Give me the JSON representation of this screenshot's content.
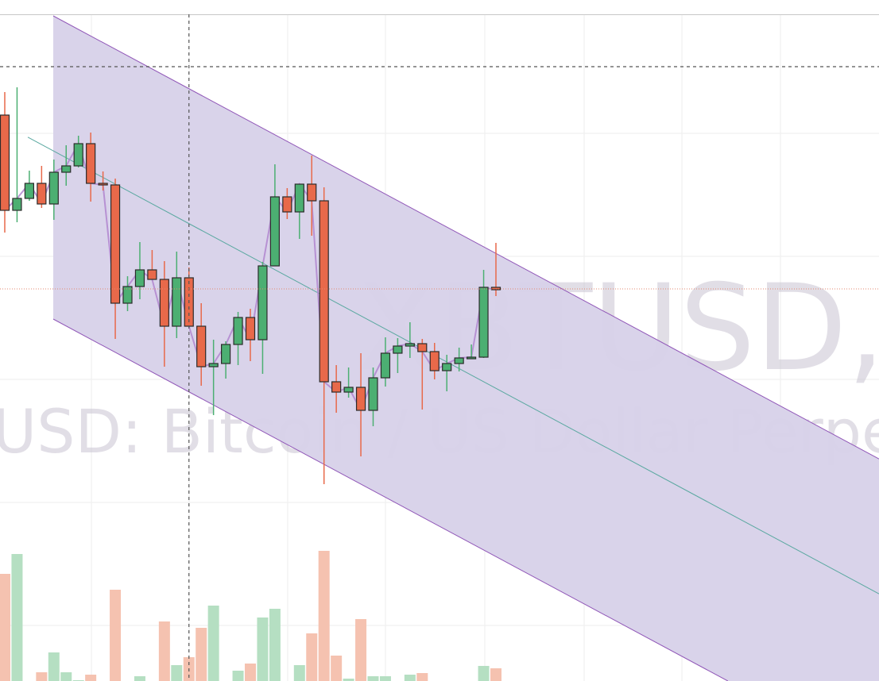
{
  "chart_data": {
    "type": "candlestick",
    "symbol_watermark": "XBTUSD,",
    "description_watermark": "XBTUSD: Bitcoin / US Dollar Perpetual",
    "price_units": "relative (no price axis visible)",
    "candles": [
      {
        "o": 45.5,
        "h": 48.4,
        "l": 30.7,
        "c": 33.5
      },
      {
        "o": 33.5,
        "h": 49.0,
        "l": 32.0,
        "c": 35.0
      },
      {
        "o": 35.0,
        "h": 38.5,
        "l": 34.7,
        "c": 36.9
      },
      {
        "o": 36.9,
        "h": 39.1,
        "l": 33.8,
        "c": 34.3
      },
      {
        "o": 34.3,
        "h": 39.9,
        "l": 32.3,
        "c": 38.3
      },
      {
        "o": 38.3,
        "h": 41.7,
        "l": 36.6,
        "c": 39.1
      },
      {
        "o": 39.1,
        "h": 42.9,
        "l": 38.9,
        "c": 41.9
      },
      {
        "o": 41.9,
        "h": 43.3,
        "l": 34.6,
        "c": 36.9
      },
      {
        "o": 36.9,
        "h": 38.4,
        "l": 36.0,
        "c": 36.7
      },
      {
        "o": 36.7,
        "h": 37.5,
        "l": 17.3,
        "c": 21.8
      },
      {
        "o": 21.8,
        "h": 25.2,
        "l": 20.8,
        "c": 23.9
      },
      {
        "o": 23.9,
        "h": 29.5,
        "l": 22.3,
        "c": 26.0
      },
      {
        "o": 26.0,
        "h": 28.5,
        "l": 24.8,
        "c": 24.8
      },
      {
        "o": 24.8,
        "h": 27.1,
        "l": 13.8,
        "c": 18.9
      },
      {
        "o": 18.9,
        "h": 28.3,
        "l": 17.4,
        "c": 25.0
      },
      {
        "o": 25.0,
        "h": 26.3,
        "l": 18.9,
        "c": 18.9
      },
      {
        "o": 18.9,
        "h": 21.8,
        "l": 11.4,
        "c": 13.8
      },
      {
        "o": 13.8,
        "h": 17.2,
        "l": 7.7,
        "c": 14.2
      },
      {
        "o": 14.2,
        "h": 17.0,
        "l": 12.3,
        "c": 16.6
      },
      {
        "o": 16.6,
        "h": 20.7,
        "l": 14.0,
        "c": 20.0
      },
      {
        "o": 20.0,
        "h": 21.1,
        "l": 14.5,
        "c": 17.2
      },
      {
        "o": 17.2,
        "h": 27.0,
        "l": 12.9,
        "c": 26.5
      },
      {
        "o": 26.5,
        "h": 39.3,
        "l": 26.5,
        "c": 35.2
      },
      {
        "o": 35.2,
        "h": 36.3,
        "l": 32.4,
        "c": 33.3
      },
      {
        "o": 33.3,
        "h": 36.8,
        "l": 29.9,
        "c": 36.8
      },
      {
        "o": 36.8,
        "h": 40.4,
        "l": 30.3,
        "c": 34.7
      },
      {
        "o": 34.7,
        "h": 36.4,
        "l": -1.0,
        "c": 11.9
      },
      {
        "o": 11.9,
        "h": 14.0,
        "l": 8.0,
        "c": 10.6
      },
      {
        "o": 10.6,
        "h": 13.7,
        "l": 9.9,
        "c": 11.2
      },
      {
        "o": 11.2,
        "h": 15.5,
        "l": 2.5,
        "c": 8.3
      },
      {
        "o": 8.3,
        "h": 13.7,
        "l": 6.3,
        "c": 12.4
      },
      {
        "o": 12.4,
        "h": 17.5,
        "l": 11.3,
        "c": 15.5
      },
      {
        "o": 15.5,
        "h": 17.4,
        "l": 13.0,
        "c": 16.4
      },
      {
        "o": 16.4,
        "h": 19.4,
        "l": 14.9,
        "c": 16.7
      },
      {
        "o": 16.7,
        "h": 17.3,
        "l": 8.4,
        "c": 15.7
      },
      {
        "o": 15.7,
        "h": 16.8,
        "l": 12.2,
        "c": 13.3
      },
      {
        "o": 13.3,
        "h": 15.3,
        "l": 10.7,
        "c": 14.2
      },
      {
        "o": 14.2,
        "h": 16.2,
        "l": 13.2,
        "c": 14.9
      },
      {
        "o": 14.9,
        "h": 16.6,
        "l": 14.9,
        "c": 15.0
      },
      {
        "o": 15.0,
        "h": 26.0,
        "l": 14.9,
        "c": 23.8
      },
      {
        "o": 23.8,
        "h": 29.4,
        "l": 22.7,
        "c": 23.5
      }
    ],
    "volume": [
      135,
      160,
      0,
      11,
      36,
      11,
      1,
      8,
      0,
      115,
      0,
      6,
      0,
      75,
      20,
      30,
      67,
      95,
      0,
      13,
      22,
      80,
      91,
      0,
      20,
      60,
      164,
      32,
      3,
      78,
      6,
      6,
      0,
      8,
      10,
      0,
      0,
      0,
      0,
      19,
      16
    ],
    "channel": {
      "upper_start": 58.0,
      "upper_slope_per_bar": -0.83,
      "lower_start": 19.8,
      "mid_start": 41.0
    },
    "current_price_line": 23.6,
    "crosshair_price": 51.6,
    "crosshair_bar": 15,
    "colors": {
      "up": "#4caf72",
      "down": "#e8694a",
      "up_volume": "#b5dfc2",
      "down_volume": "#f5c2b0",
      "channel_fill": "#d7d1e9",
      "channel_line": "#9158b8",
      "mid_line": "#5aa8a0",
      "close_line": "#b38ad0",
      "price_line": "#e3876f"
    },
    "grid": true
  }
}
